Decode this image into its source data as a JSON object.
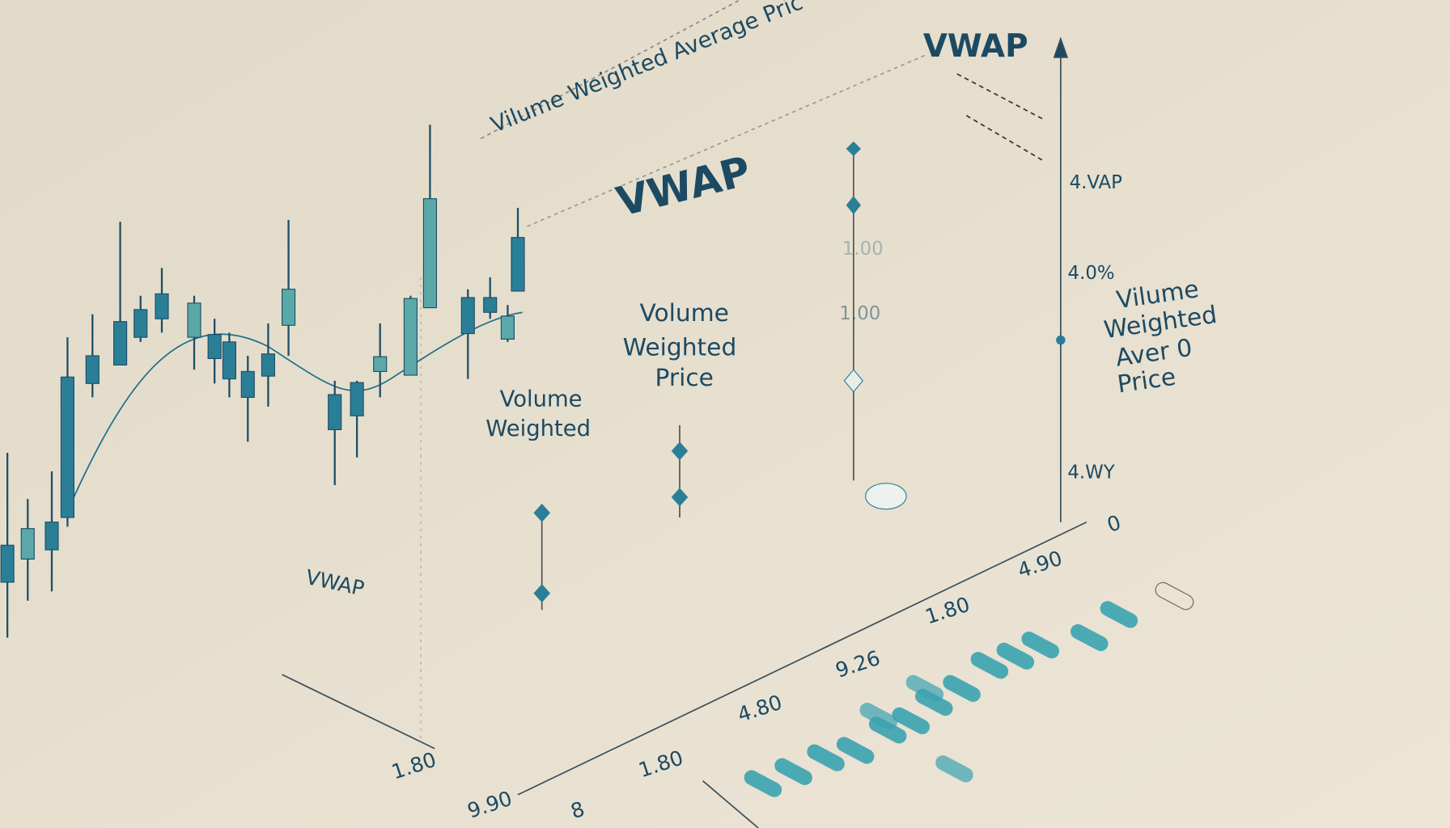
{
  "banner": "Vilume Weighted Average Pric",
  "vwap_top": "VWAP",
  "vwap_center": "VWAP",
  "vwap_left": "VWAP",
  "axis_labels": [
    "4.VAP",
    "4.0%",
    "4.WY"
  ],
  "side_label": [
    "Vilume",
    "Weighted",
    "Aver 0",
    "Price"
  ],
  "mid_label": [
    "Volume",
    "Weighted",
    "Price"
  ],
  "low_label": [
    "Volume",
    "Weighted"
  ],
  "marker_labels": [
    "1.00",
    "1.00"
  ],
  "bottom_labels": [
    "1.80",
    "9.90",
    "8",
    "1.80",
    "4.80",
    "9.26",
    "1.80",
    "4.90",
    "0"
  ]
}
